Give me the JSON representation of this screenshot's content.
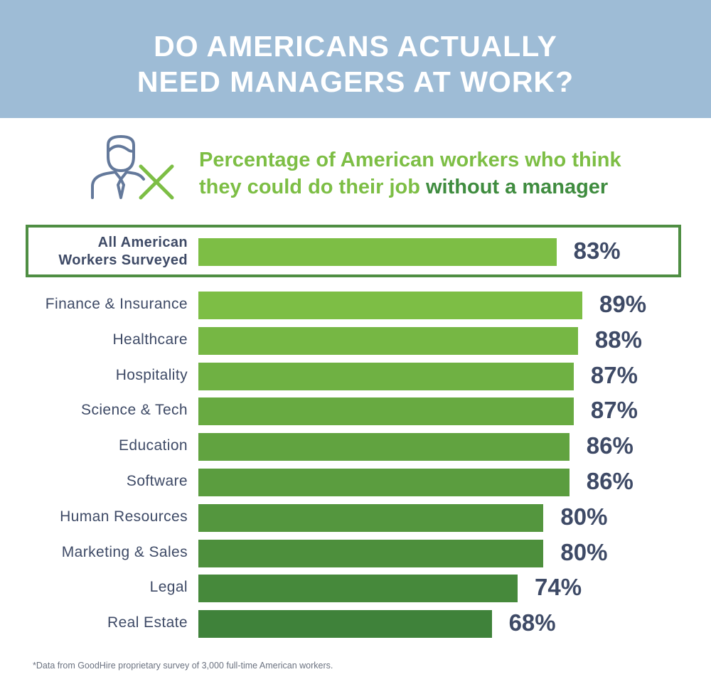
{
  "header": {
    "title_line1": "DO AMERICANS ACTUALLY",
    "title_line2": "NEED MANAGERS AT WORK?"
  },
  "subtitle": {
    "line1": "Percentage of American workers who think",
    "line2_start": "they could do their job ",
    "line2_highlight": "without a manager"
  },
  "icon": {
    "name": "manager-crossed-out-icon",
    "person_color": "#64799b",
    "x_color": "#7dbe45"
  },
  "colors": {
    "header_bg": "#9ebcd6",
    "light_green": "#7dbe45",
    "dark_green": "#3f8c3f",
    "label_text": "#3e4a66",
    "box_border": "#4f8e43"
  },
  "chart_data": {
    "type": "bar",
    "orientation": "horizontal",
    "title": "DO AMERICANS ACTUALLY NEED MANAGERS AT WORK?",
    "subtitle": "Percentage of American workers who think they could do their job without a manager",
    "unit": "%",
    "highlight": {
      "category": "All American Workers Surveyed",
      "label_line1": "All American",
      "label_line2": "Workers Surveyed",
      "value": 83,
      "value_label": "83%"
    },
    "categories": [
      "Finance & Insurance",
      "Healthcare",
      "Hospitality",
      "Science & Tech",
      "Education",
      "Software",
      "Human Resources",
      "Marketing & Sales",
      "Legal",
      "Real Estate"
    ],
    "values": [
      89,
      88,
      87,
      87,
      86,
      86,
      80,
      80,
      74,
      68
    ],
    "value_labels": [
      "89%",
      "88%",
      "87%",
      "87%",
      "86%",
      "86%",
      "80%",
      "80%",
      "74%",
      "68%"
    ],
    "legend": "none",
    "grid": false
  },
  "footnote": "*Data from GoodHire proprietary survey of 3,000 full-time American workers."
}
